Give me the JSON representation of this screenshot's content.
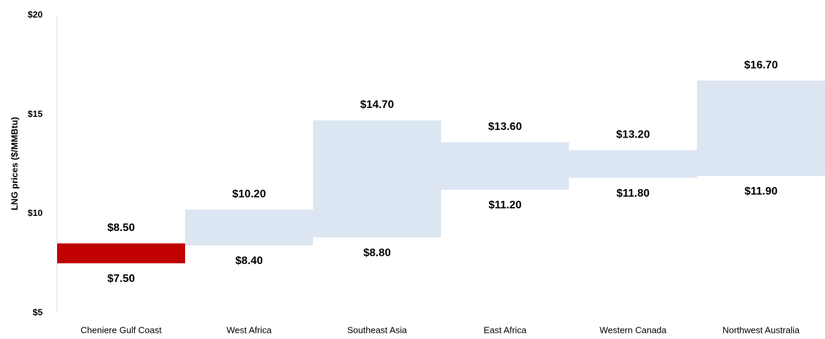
{
  "chart_data": {
    "type": "floating-bar",
    "y_label": "LNG prices ($/MMBtu)",
    "categories": [
      "Cheniere Gulf Coast",
      "West Africa",
      "Southeast Asia",
      "East Africa",
      "Western Canada",
      "Northwest Australia"
    ],
    "low": [
      7.5,
      8.4,
      8.8,
      11.2,
      11.8,
      11.9
    ],
    "high": [
      8.5,
      10.2,
      14.7,
      13.6,
      13.2,
      16.7
    ],
    "low_labels": [
      "$7.50",
      "$8.40",
      "$8.80",
      "$11.20",
      "$11.80",
      "$11.90"
    ],
    "high_labels": [
      "$8.50",
      "$10.20",
      "$14.70",
      "$13.60",
      "$13.20",
      "$16.70"
    ],
    "colors": [
      "#c00000",
      "#dce6f2",
      "#dce6f2",
      "#dce6f2",
      "#dce6f2",
      "#dce6f2"
    ],
    "ylim": [
      5,
      20
    ],
    "yticks": [
      {
        "value": 5,
        "label": "$5"
      },
      {
        "value": 10,
        "label": "$10"
      },
      {
        "value": 15,
        "label": "$15"
      },
      {
        "value": 20,
        "label": "$20"
      }
    ],
    "grid": false
  }
}
